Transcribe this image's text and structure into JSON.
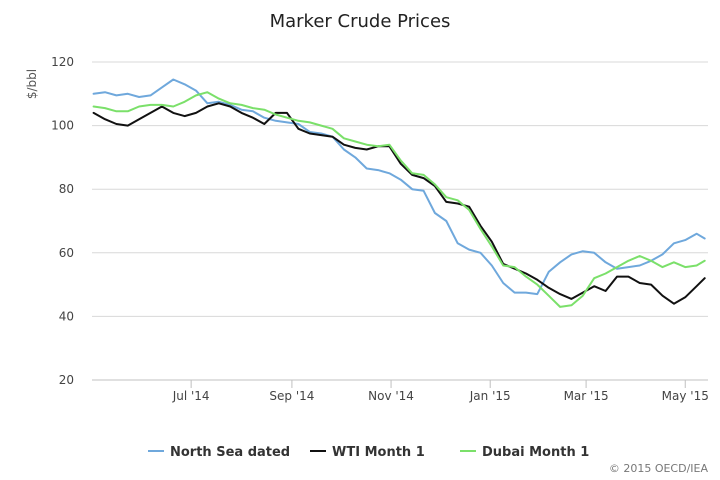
{
  "chart_data": {
    "type": "line",
    "title": "Marker Crude Prices",
    "ylabel": "$/bbl",
    "xlabel": "",
    "ylim": [
      20,
      120
    ],
    "yticks": [
      20,
      40,
      60,
      80,
      100,
      120
    ],
    "x_range": [
      "2014-05-01",
      "2015-05-15"
    ],
    "x_ticks": [
      {
        "date": "2014-07-01",
        "label": "Jul '14"
      },
      {
        "date": "2014-09-01",
        "label": "Sep '14"
      },
      {
        "date": "2014-11-01",
        "label": "Nov '14"
      },
      {
        "date": "2015-01-01",
        "label": "Jan '15"
      },
      {
        "date": "2015-03-01",
        "label": "Mar '15"
      },
      {
        "date": "2015-05-01",
        "label": "May '15"
      }
    ],
    "grid": true,
    "legend_position": "bottom",
    "series": [
      {
        "name": "North Sea dated",
        "color": "#6fa8dc",
        "points": [
          [
            "2014-05-02",
            110
          ],
          [
            "2014-05-09",
            110.5
          ],
          [
            "2014-05-16",
            109.5
          ],
          [
            "2014-05-23",
            110
          ],
          [
            "2014-05-30",
            109
          ],
          [
            "2014-06-06",
            109.5
          ],
          [
            "2014-06-13",
            112
          ],
          [
            "2014-06-20",
            114.5
          ],
          [
            "2014-06-27",
            113
          ],
          [
            "2014-07-04",
            111
          ],
          [
            "2014-07-11",
            107
          ],
          [
            "2014-07-18",
            107.5
          ],
          [
            "2014-07-25",
            106.5
          ],
          [
            "2014-08-01",
            105
          ],
          [
            "2014-08-08",
            104.5
          ],
          [
            "2014-08-15",
            102.5
          ],
          [
            "2014-08-22",
            101.5
          ],
          [
            "2014-08-29",
            101
          ],
          [
            "2014-09-05",
            100.5
          ],
          [
            "2014-09-12",
            98
          ],
          [
            "2014-09-19",
            97.5
          ],
          [
            "2014-09-26",
            96.5
          ],
          [
            "2014-10-03",
            92.5
          ],
          [
            "2014-10-10",
            90
          ],
          [
            "2014-10-17",
            86.5
          ],
          [
            "2014-10-24",
            86
          ],
          [
            "2014-10-31",
            85
          ],
          [
            "2014-11-07",
            83
          ],
          [
            "2014-11-14",
            80
          ],
          [
            "2014-11-21",
            79.5
          ],
          [
            "2014-11-28",
            72.5
          ],
          [
            "2014-12-05",
            70
          ],
          [
            "2014-12-12",
            63
          ],
          [
            "2014-12-19",
            61
          ],
          [
            "2014-12-26",
            60
          ],
          [
            "2015-01-02",
            56
          ],
          [
            "2015-01-09",
            50.5
          ],
          [
            "2015-01-16",
            47.5
          ],
          [
            "2015-01-23",
            47.5
          ],
          [
            "2015-01-30",
            47
          ],
          [
            "2015-02-06",
            54
          ],
          [
            "2015-02-13",
            57
          ],
          [
            "2015-02-20",
            59.5
          ],
          [
            "2015-02-27",
            60.5
          ],
          [
            "2015-03-06",
            60
          ],
          [
            "2015-03-13",
            57
          ],
          [
            "2015-03-20",
            55
          ],
          [
            "2015-03-27",
            55.5
          ],
          [
            "2015-04-03",
            56
          ],
          [
            "2015-04-10",
            57.5
          ],
          [
            "2015-04-17",
            59.5
          ],
          [
            "2015-04-24",
            63
          ],
          [
            "2015-05-01",
            64
          ],
          [
            "2015-05-08",
            66
          ],
          [
            "2015-05-13",
            64.5
          ]
        ]
      },
      {
        "name": "WTI Month 1",
        "color": "#111111",
        "points": [
          [
            "2014-05-02",
            104
          ],
          [
            "2014-05-09",
            102
          ],
          [
            "2014-05-16",
            100.5
          ],
          [
            "2014-05-23",
            100
          ],
          [
            "2014-05-30",
            102
          ],
          [
            "2014-06-06",
            104
          ],
          [
            "2014-06-13",
            106
          ],
          [
            "2014-06-20",
            104
          ],
          [
            "2014-06-27",
            103
          ],
          [
            "2014-07-04",
            104
          ],
          [
            "2014-07-11",
            106
          ],
          [
            "2014-07-18",
            107
          ],
          [
            "2014-07-25",
            106
          ],
          [
            "2014-08-01",
            104
          ],
          [
            "2014-08-08",
            102.5
          ],
          [
            "2014-08-15",
            100.5
          ],
          [
            "2014-08-22",
            104
          ],
          [
            "2014-08-29",
            104
          ],
          [
            "2014-09-05",
            99
          ],
          [
            "2014-09-12",
            97.5
          ],
          [
            "2014-09-19",
            97
          ],
          [
            "2014-09-26",
            96.5
          ],
          [
            "2014-10-03",
            94
          ],
          [
            "2014-10-10",
            93
          ],
          [
            "2014-10-17",
            92.5
          ],
          [
            "2014-10-24",
            93.5
          ],
          [
            "2014-10-31",
            93.5
          ],
          [
            "2014-11-07",
            88
          ],
          [
            "2014-11-14",
            84.5
          ],
          [
            "2014-11-21",
            83.5
          ],
          [
            "2014-11-28",
            81
          ],
          [
            "2014-12-05",
            76
          ],
          [
            "2014-12-12",
            75.5
          ],
          [
            "2014-12-19",
            74.5
          ],
          [
            "2014-12-26",
            68.5
          ],
          [
            "2015-01-02",
            63.5
          ],
          [
            "2015-01-09",
            56.5
          ],
          [
            "2015-01-16",
            55
          ],
          [
            "2015-01-23",
            53.5
          ],
          [
            "2015-01-30",
            51.5
          ],
          [
            "2015-02-06",
            49
          ],
          [
            "2015-02-13",
            47
          ],
          [
            "2015-02-20",
            45.5
          ],
          [
            "2015-02-27",
            47.5
          ],
          [
            "2015-03-06",
            49.5
          ],
          [
            "2015-03-13",
            48
          ],
          [
            "2015-03-20",
            52.5
          ],
          [
            "2015-03-27",
            52.5
          ],
          [
            "2015-04-03",
            50.5
          ],
          [
            "2015-04-10",
            50
          ],
          [
            "2015-04-17",
            46.5
          ],
          [
            "2015-04-24",
            44
          ],
          [
            "2015-05-01",
            46
          ],
          [
            "2015-05-08",
            49.5
          ],
          [
            "2015-05-13",
            52
          ]
        ]
      },
      {
        "name": "Dubai Month 1",
        "color": "#7be06a",
        "points": [
          [
            "2014-05-02",
            106
          ],
          [
            "2014-05-09",
            105.5
          ],
          [
            "2014-05-16",
            104.5
          ],
          [
            "2014-05-23",
            104.5
          ],
          [
            "2014-05-30",
            106
          ],
          [
            "2014-06-06",
            106.5
          ],
          [
            "2014-06-13",
            106.5
          ],
          [
            "2014-06-20",
            106
          ],
          [
            "2014-06-27",
            107.5
          ],
          [
            "2014-07-04",
            109.5
          ],
          [
            "2014-07-11",
            110.5
          ],
          [
            "2014-07-18",
            108.5
          ],
          [
            "2014-07-25",
            107
          ],
          [
            "2014-08-01",
            106.5
          ],
          [
            "2014-08-08",
            105.5
          ],
          [
            "2014-08-15",
            105
          ],
          [
            "2014-08-22",
            103.5
          ],
          [
            "2014-08-29",
            102.5
          ],
          [
            "2014-09-05",
            101.5
          ],
          [
            "2014-09-12",
            101
          ],
          [
            "2014-09-19",
            100
          ],
          [
            "2014-09-26",
            99
          ],
          [
            "2014-10-03",
            96
          ],
          [
            "2014-10-10",
            95
          ],
          [
            "2014-10-17",
            94
          ],
          [
            "2014-10-24",
            93.5
          ],
          [
            "2014-10-31",
            94
          ],
          [
            "2014-11-07",
            89
          ],
          [
            "2014-11-14",
            85
          ],
          [
            "2014-11-21",
            84.5
          ],
          [
            "2014-11-28",
            81.5
          ],
          [
            "2014-12-05",
            77.5
          ],
          [
            "2014-12-12",
            76.5
          ],
          [
            "2014-12-19",
            73.5
          ],
          [
            "2014-12-26",
            67.5
          ],
          [
            "2015-01-02",
            62
          ],
          [
            "2015-01-09",
            56
          ],
          [
            "2015-01-16",
            55.5
          ],
          [
            "2015-01-23",
            52.5
          ],
          [
            "2015-01-30",
            50
          ],
          [
            "2015-02-06",
            46.5
          ],
          [
            "2015-02-13",
            43
          ],
          [
            "2015-02-20",
            43.5
          ],
          [
            "2015-02-27",
            46.5
          ],
          [
            "2015-03-06",
            52
          ],
          [
            "2015-03-13",
            53.5
          ],
          [
            "2015-03-20",
            55.5
          ],
          [
            "2015-03-27",
            57.5
          ],
          [
            "2015-04-03",
            59
          ],
          [
            "2015-04-10",
            57.5
          ],
          [
            "2015-04-17",
            55.5
          ],
          [
            "2015-04-24",
            57
          ],
          [
            "2015-05-01",
            55.5
          ],
          [
            "2015-05-08",
            56
          ],
          [
            "2015-05-13",
            57.5
          ]
        ]
      }
    ],
    "credit": "© 2015 OECD/IEA"
  }
}
